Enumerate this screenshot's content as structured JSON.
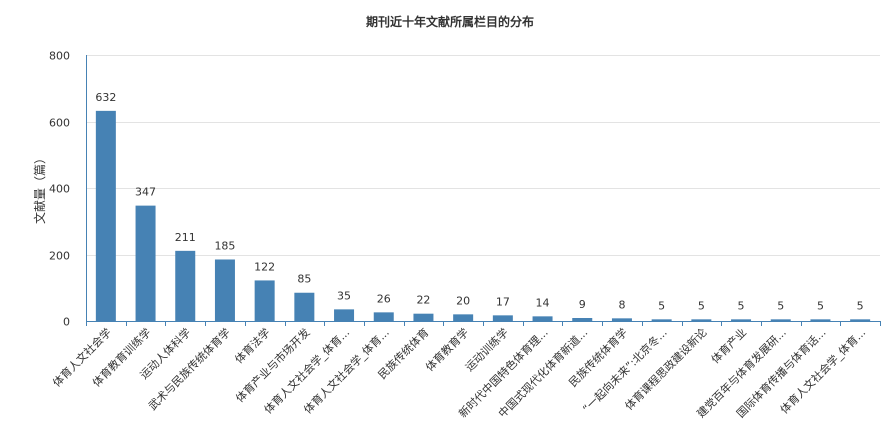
{
  "chart_data": {
    "type": "bar",
    "title": "期刊近十年文献所属栏目的分布",
    "xlabel": "",
    "ylabel": "文献量（篇）",
    "ylim": [
      0,
      800
    ],
    "yticks": [
      0,
      200,
      400,
      600,
      800
    ],
    "grid": true,
    "legend": "none",
    "bar_color": "#4682b4",
    "categories": [
      "体育人文社会学",
      "体育教育训练学",
      "运动人体科学",
      "武术与民族传统体育学",
      "体育法学",
      "体育产业与市场开发",
      "体育人文社会学_体育...",
      "体育人文社会学_体育...",
      "民族传统体育",
      "体育教育学",
      "运动训练学",
      "新时代中国特色体育理...",
      "中国式现代化体育新道...",
      "民族传统体育学",
      "“一起向未来”:北京冬...",
      "体育课程思政建设新论",
      "体育产业",
      "建党百年与体育发展研...",
      "国际体育传播与体育话...",
      "体育人文社会学_体育..."
    ],
    "values": [
      632,
      347,
      211,
      185,
      122,
      85,
      35,
      26,
      22,
      20,
      17,
      14,
      9,
      8,
      5,
      5,
      5,
      5,
      5,
      5
    ]
  }
}
